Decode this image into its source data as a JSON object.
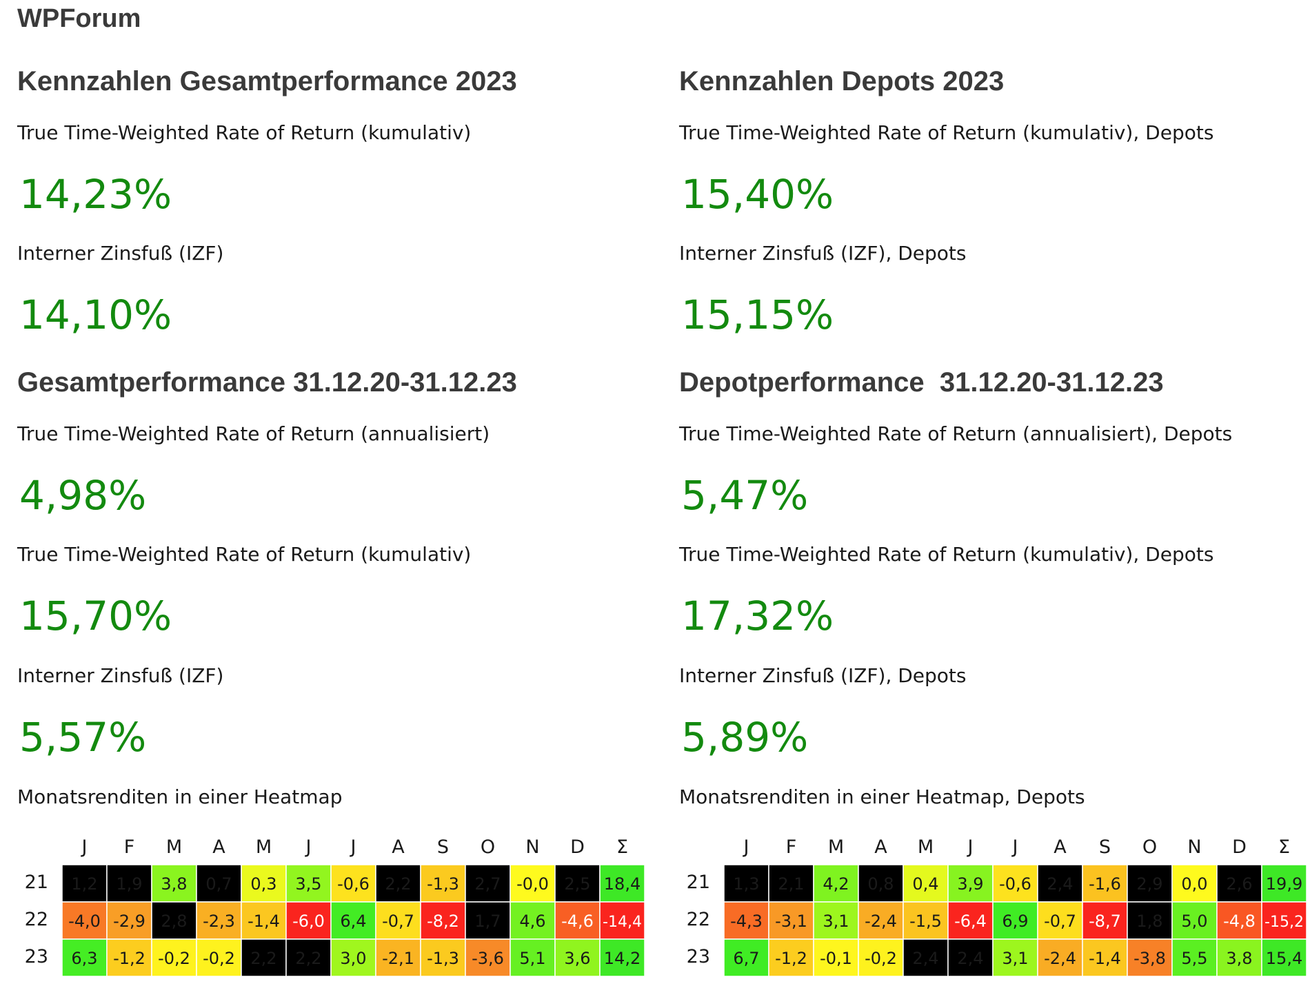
{
  "app_title": "WPForum",
  "left": {
    "section1_title": "Kennzahlen Gesamtperformance 2023",
    "metric1_label": "True Time-Weighted Rate of Return (kumulativ)",
    "metric1_value": "14,23%",
    "metric2_label": "Interner Zinsfuß (IZF)",
    "metric2_value": "14,10%",
    "section2_title": "Gesamtperformance 31.12.20-31.12.23",
    "metric3_label": "True Time-Weighted Rate of Return (annualisiert)",
    "metric3_value": "4,98%",
    "metric4_label": "True Time-Weighted Rate of Return (kumulativ)",
    "metric4_value": "15,70%",
    "metric5_label": "Interner Zinsfuß (IZF)",
    "metric5_value": "5,57%",
    "heatmap_label": "Monatsrenditen in einer Heatmap"
  },
  "right": {
    "section1_title": "Kennzahlen Depots 2023",
    "metric1_label": "True Time-Weighted Rate of Return (kumulativ), Depots",
    "metric1_value": "15,40%",
    "metric2_label": "Interner Zinsfuß (IZF), Depots",
    "metric2_value": "15,15%",
    "section2_title": "Depotperformance  31.12.20-31.12.23",
    "metric3_label": "True Time-Weighted Rate of Return (annualisiert), Depots",
    "metric3_value": "5,47%",
    "metric4_label": "True Time-Weighted Rate of Return (kumulativ), Depots",
    "metric4_value": "17,32%",
    "metric5_label": "Interner Zinsfuß (IZF), Depots",
    "metric5_value": "5,89%",
    "heatmap_label": "Monatsrenditen in einer Heatmap, Depots"
  },
  "chart_data": [
    {
      "type": "heatmap",
      "columns": [
        "J",
        "F",
        "M",
        "A",
        "M",
        "J",
        "J",
        "A",
        "S",
        "O",
        "N",
        "D",
        "Σ"
      ],
      "rows": [
        "21",
        "22",
        "23"
      ],
      "values": [
        [
          "1,2",
          "1,9",
          "3,8",
          "0,7",
          "0,3",
          "3,5",
          "-0,6",
          "2,2",
          "-1,3",
          "2,7",
          "-0,0",
          "2,5",
          "18,4"
        ],
        [
          "-4,0",
          "-2,9",
          "2,8",
          "-2,3",
          "-1,4",
          "-6,0",
          "6,4",
          "-0,7",
          "-8,2",
          "1,7",
          "4,6",
          "-4,6",
          "-14,4"
        ],
        [
          "6,3",
          "-1,2",
          "-0,2",
          "-0,2",
          "2,2",
          "2,2",
          "3,0",
          "-2,1",
          "-1,3",
          "-3,6",
          "5,1",
          "3,6",
          "14,2"
        ]
      ]
    },
    {
      "type": "heatmap",
      "columns": [
        "J",
        "F",
        "M",
        "A",
        "M",
        "J",
        "J",
        "A",
        "S",
        "O",
        "N",
        "D",
        "Σ"
      ],
      "rows": [
        "21",
        "22",
        "23"
      ],
      "values": [
        [
          "1,3",
          "2,1",
          "4,2",
          "0,8",
          "0,4",
          "3,9",
          "-0,6",
          "2,4",
          "-1,6",
          "2,9",
          "0,0",
          "2,6",
          "19,9"
        ],
        [
          "-4,3",
          "-3,1",
          "3,1",
          "-2,4",
          "-1,5",
          "-6,4",
          "6,9",
          "-0,7",
          "-8,7",
          "1,8",
          "5,0",
          "-4,8",
          "-15,2"
        ],
        [
          "6,7",
          "-1,2",
          "-0,1",
          "-0,2",
          "2,4",
          "2,4",
          "3,1",
          "-2,4",
          "-1,4",
          "-3,8",
          "5,5",
          "3,8",
          "15,4"
        ]
      ]
    }
  ]
}
